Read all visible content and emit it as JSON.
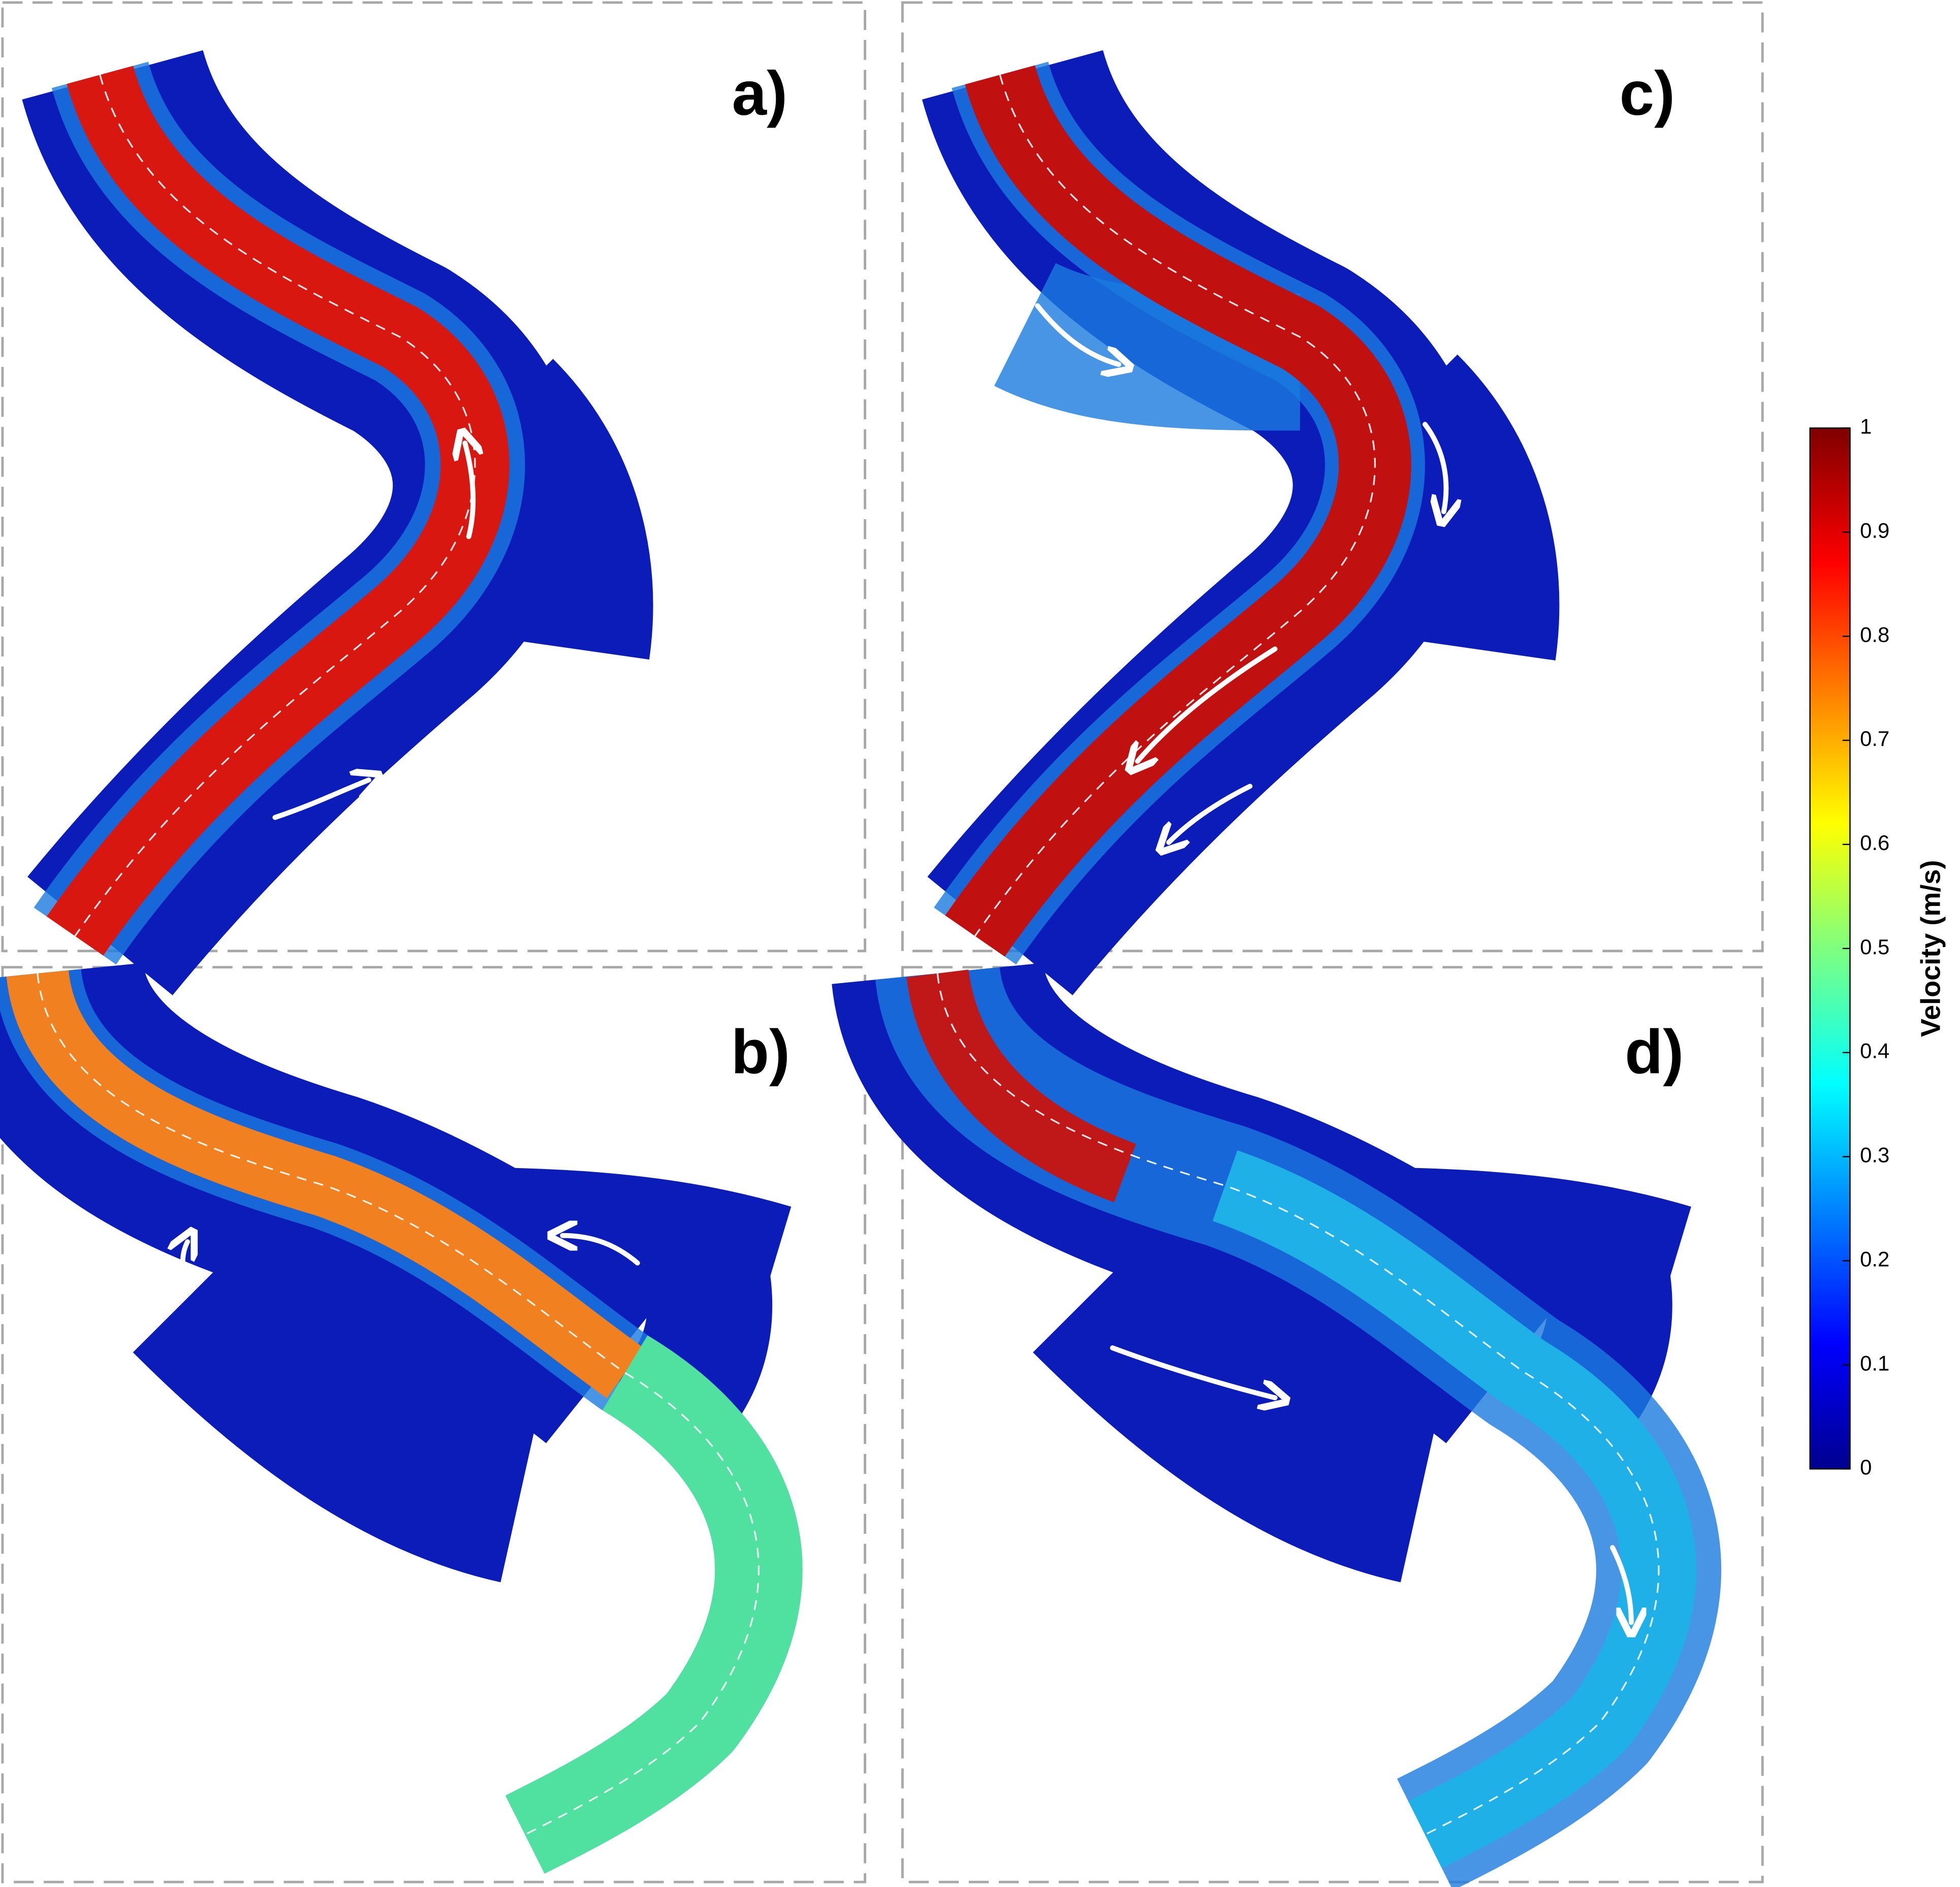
{
  "panels": [
    {
      "label": "a)"
    },
    {
      "label": "b)"
    },
    {
      "label": "c)"
    },
    {
      "label": "d)"
    }
  ],
  "colorbar": {
    "label": "Velocity (m/s)",
    "lim": [
      0,
      1
    ],
    "ticks": [
      0,
      0.1,
      0.2,
      0.3,
      0.4,
      0.5,
      0.6,
      0.7,
      0.8,
      0.9,
      1
    ]
  }
}
